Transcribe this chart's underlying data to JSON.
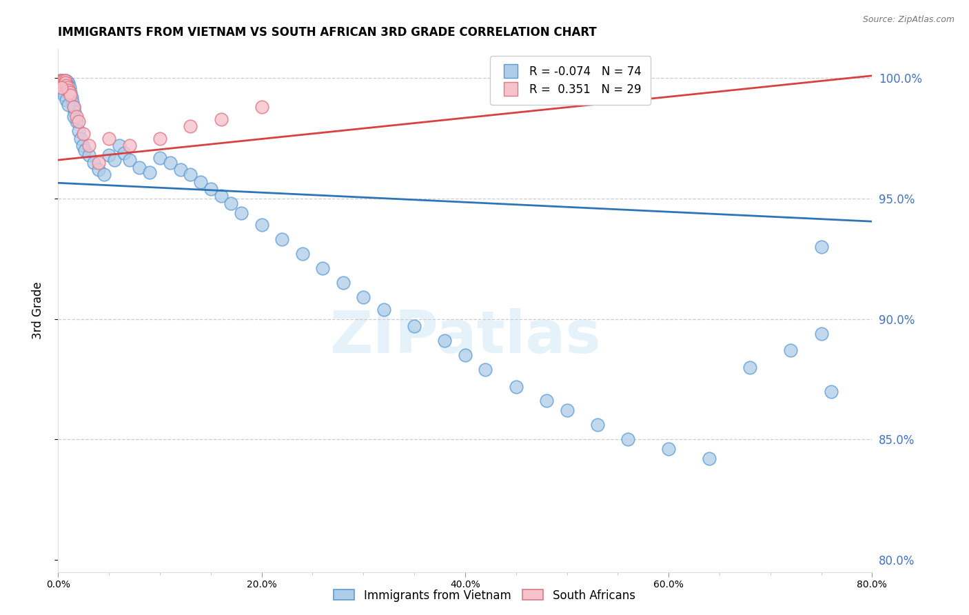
{
  "title": "IMMIGRANTS FROM VIETNAM VS SOUTH AFRICAN 3RD GRADE CORRELATION CHART",
  "source": "Source: ZipAtlas.com",
  "ylabel": "3rd Grade",
  "r_blue": -0.074,
  "n_blue": 74,
  "r_pink": 0.351,
  "n_pink": 29,
  "xmin": 0.0,
  "xmax": 0.8,
  "ymin": 0.795,
  "ymax": 1.012,
  "yticks": [
    0.8,
    0.85,
    0.9,
    0.95,
    1.0
  ],
  "ytick_labels": [
    "80.0%",
    "85.0%",
    "90.0%",
    "95.0%",
    "100.0%"
  ],
  "xticks": [
    0.0,
    0.2,
    0.4,
    0.6,
    0.8
  ],
  "watermark": "ZIPatlas",
  "blue_face": "#aecde8",
  "blue_edge": "#5b9bd5",
  "pink_face": "#f5c2cc",
  "pink_edge": "#e07888",
  "line_blue_color": "#2e75b6",
  "line_pink_color": "#d94040",
  "grid_color": "#cccccc",
  "right_tick_color": "#4472c4",
  "legend_label_blue": "Immigrants from Vietnam",
  "legend_label_pink": "South Africans",
  "blue_trend_x": [
    0.0,
    0.8
  ],
  "blue_trend_y": [
    0.9565,
    0.9405
  ],
  "pink_trend_x": [
    0.0,
    0.8
  ],
  "pink_trend_y": [
    0.966,
    1.001
  ],
  "blue_x": [
    0.002,
    0.003,
    0.004,
    0.005,
    0.005,
    0.006,
    0.006,
    0.007,
    0.007,
    0.008,
    0.008,
    0.009,
    0.009,
    0.01,
    0.01,
    0.011,
    0.012,
    0.013,
    0.014,
    0.015,
    0.016,
    0.018,
    0.02,
    0.022,
    0.024,
    0.026,
    0.03,
    0.035,
    0.04,
    0.045,
    0.05,
    0.055,
    0.06,
    0.065,
    0.07,
    0.08,
    0.09,
    0.1,
    0.11,
    0.12,
    0.13,
    0.14,
    0.15,
    0.16,
    0.17,
    0.18,
    0.2,
    0.22,
    0.24,
    0.26,
    0.28,
    0.3,
    0.32,
    0.35,
    0.38,
    0.4,
    0.42,
    0.45,
    0.48,
    0.5,
    0.53,
    0.56,
    0.6,
    0.64,
    0.68,
    0.72,
    0.75,
    0.76,
    0.004,
    0.006,
    0.008,
    0.01,
    0.015,
    0.75
  ],
  "blue_y": [
    0.999,
    0.998,
    0.999,
    0.998,
    0.997,
    0.999,
    0.998,
    0.997,
    0.999,
    0.999,
    0.998,
    0.997,
    0.996,
    0.998,
    0.997,
    0.996,
    0.994,
    0.992,
    0.99,
    0.988,
    0.986,
    0.982,
    0.978,
    0.975,
    0.972,
    0.97,
    0.968,
    0.965,
    0.962,
    0.96,
    0.968,
    0.966,
    0.972,
    0.969,
    0.966,
    0.963,
    0.961,
    0.967,
    0.965,
    0.962,
    0.96,
    0.957,
    0.954,
    0.951,
    0.948,
    0.944,
    0.939,
    0.933,
    0.927,
    0.921,
    0.915,
    0.909,
    0.904,
    0.897,
    0.891,
    0.885,
    0.879,
    0.872,
    0.866,
    0.862,
    0.856,
    0.85,
    0.846,
    0.842,
    0.88,
    0.887,
    0.894,
    0.87,
    0.995,
    0.993,
    0.991,
    0.989,
    0.984,
    0.93
  ],
  "pink_x": [
    0.002,
    0.003,
    0.003,
    0.004,
    0.004,
    0.005,
    0.005,
    0.006,
    0.006,
    0.007,
    0.007,
    0.008,
    0.009,
    0.01,
    0.011,
    0.012,
    0.015,
    0.018,
    0.02,
    0.025,
    0.03,
    0.04,
    0.05,
    0.07,
    0.1,
    0.13,
    0.16,
    0.2,
    0.003
  ],
  "pink_y": [
    0.999,
    0.999,
    0.999,
    0.999,
    0.998,
    0.998,
    0.999,
    0.998,
    0.997,
    0.999,
    0.998,
    0.997,
    0.996,
    0.995,
    0.994,
    0.993,
    0.988,
    0.984,
    0.982,
    0.977,
    0.972,
    0.965,
    0.975,
    0.972,
    0.975,
    0.98,
    0.983,
    0.988,
    0.996
  ]
}
